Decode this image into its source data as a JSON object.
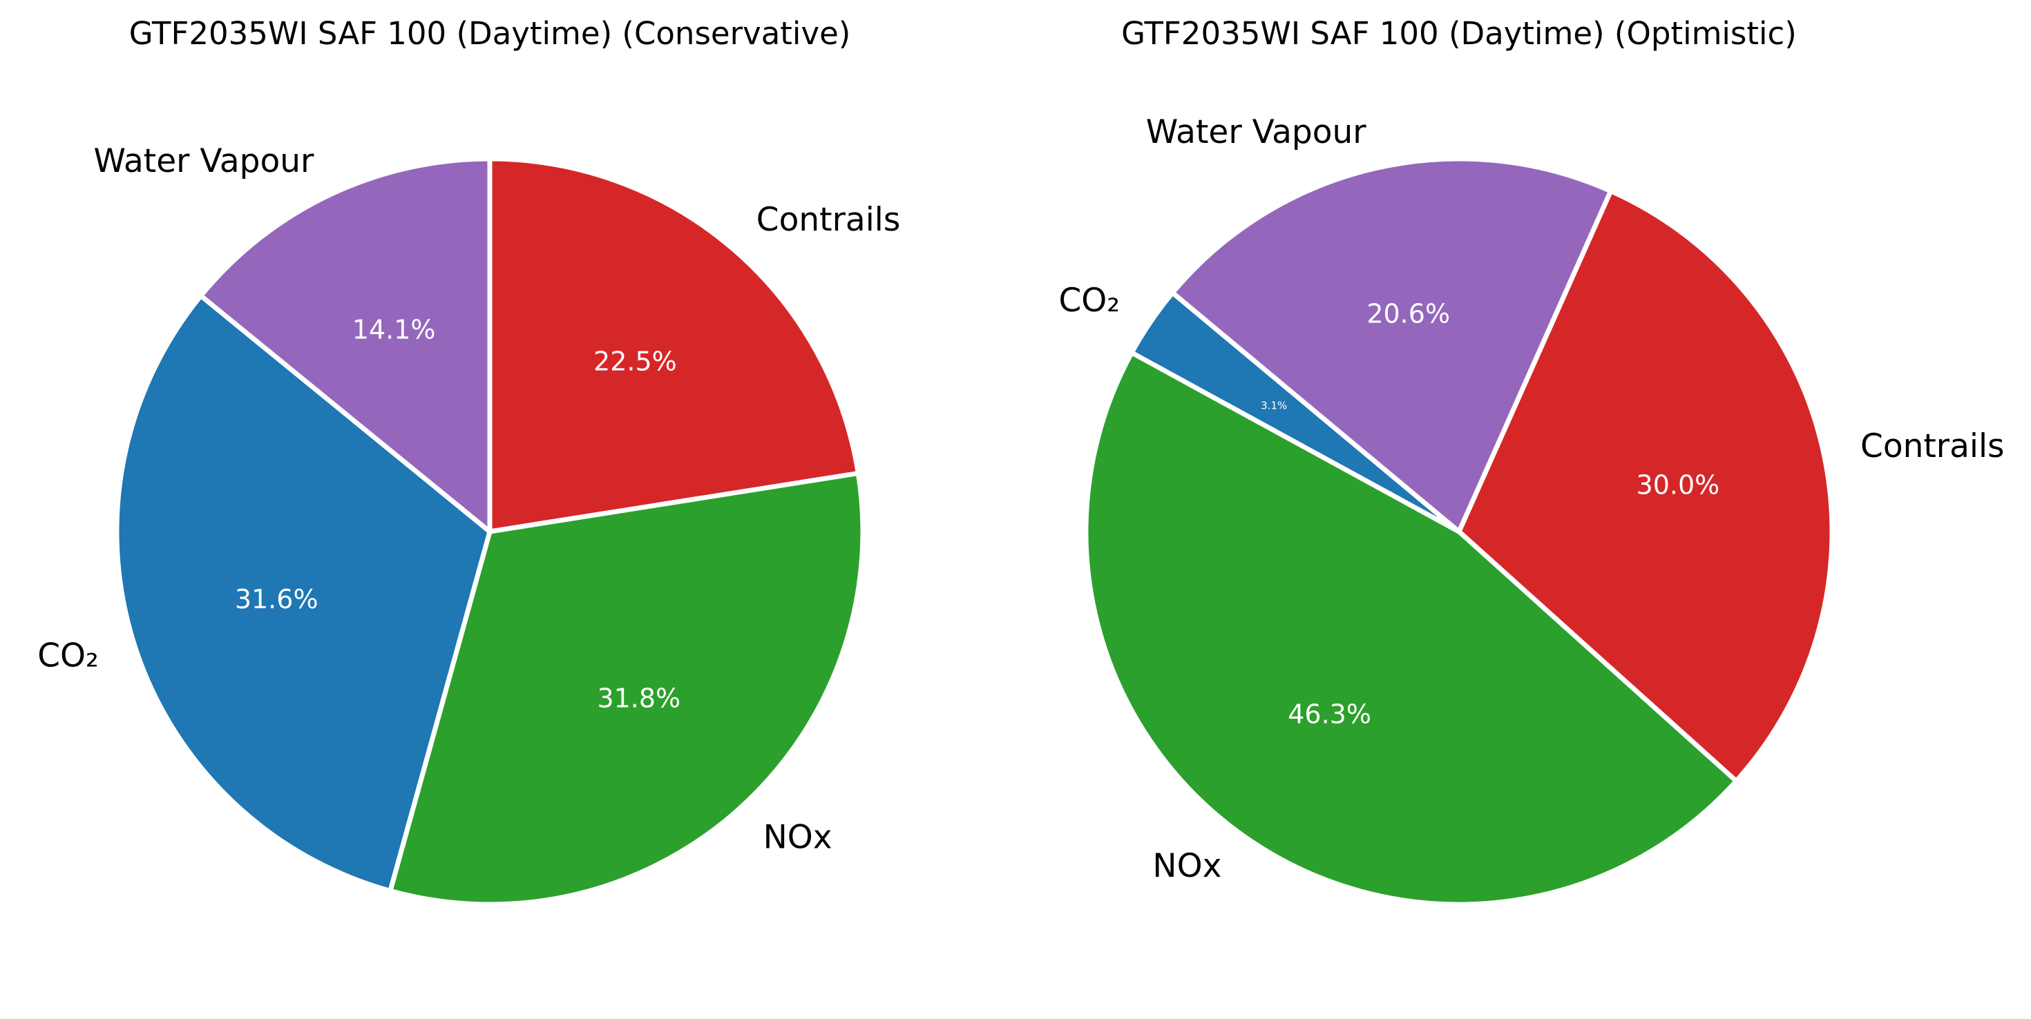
{
  "chart_data": [
    {
      "type": "pie",
      "title": "GTF2035WI SAF 100 (Daytime) (Conservative)",
      "start_angle_deg": 90,
      "direction": "clockwise",
      "slices": [
        {
          "label": "Contrails",
          "value": 22.5,
          "value_label": "22.5%",
          "color": "#d62728"
        },
        {
          "label": "NOx",
          "value": 31.8,
          "value_label": "31.8%",
          "color": "#2ca02c"
        },
        {
          "label": "CO₂",
          "value": 31.6,
          "value_label": "31.6%",
          "color": "#1f77b4"
        },
        {
          "label": "Water Vapour",
          "value": 14.1,
          "value_label": "14.1%",
          "color": "#9467bd"
        }
      ]
    },
    {
      "type": "pie",
      "title": "GTF2035WI SAF 100 (Daytime) (Optimistic)",
      "start_angle_deg": 66,
      "direction": "clockwise",
      "slices": [
        {
          "label": "Contrails",
          "value": 30.0,
          "value_label": "30.0%",
          "color": "#d62728"
        },
        {
          "label": "NOx",
          "value": 46.3,
          "value_label": "46.3%",
          "color": "#2ca02c"
        },
        {
          "label": "CO₂",
          "value": 3.1,
          "value_label": "3.1%",
          "color": "#1f77b4"
        },
        {
          "label": "Water Vapour",
          "value": 20.6,
          "value_label": "20.6%",
          "color": "#9467bd"
        }
      ]
    }
  ]
}
